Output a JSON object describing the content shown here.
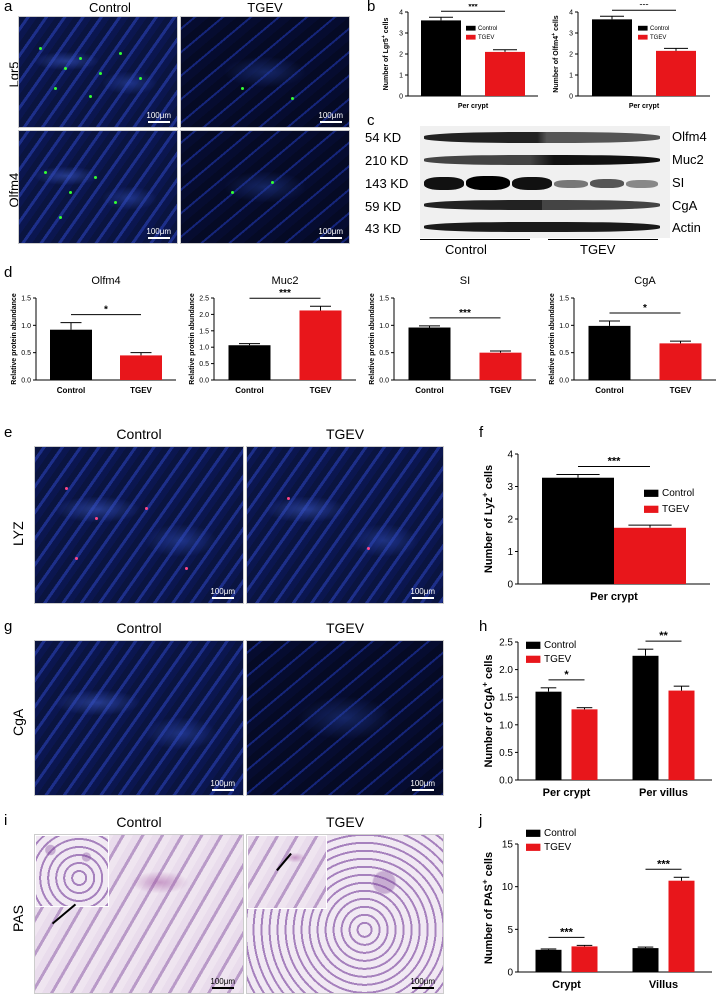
{
  "panels": {
    "a": {
      "label": "a",
      "col_headers": [
        "Control",
        "TGEV"
      ],
      "row_labels": [
        "Lgr5",
        "Olfm4"
      ],
      "scale": "100μm"
    },
    "b": {
      "label": "b"
    },
    "c": {
      "label": "c",
      "markers": [
        "54 KD",
        "210 KD",
        "143 KD",
        "59 KD",
        "43 KD"
      ],
      "proteins": [
        "Olfm4",
        "Muc2",
        "SI",
        "CgA",
        "Actin"
      ],
      "groups": [
        "Control",
        "TGEV"
      ]
    },
    "d": {
      "label": "d"
    },
    "e": {
      "label": "e",
      "col_headers": [
        "Control",
        "TGEV"
      ],
      "row_label": "LYZ",
      "scale": "100μm"
    },
    "f": {
      "label": "f"
    },
    "g": {
      "label": "g",
      "col_headers": [
        "Control",
        "TGEV"
      ],
      "row_label": "CgA",
      "scale": "100μm"
    },
    "h": {
      "label": "h"
    },
    "i": {
      "label": "i",
      "col_headers": [
        "Control",
        "TGEV"
      ],
      "row_label": "PAS",
      "scale": "100μm"
    },
    "j": {
      "label": "j"
    }
  },
  "chart_data": [
    {
      "id": "b1",
      "type": "bar",
      "categories": [
        "Per crypt"
      ],
      "series": [
        {
          "name": "Control",
          "values": [
            3.6
          ]
        },
        {
          "name": "TGEV",
          "values": [
            2.1
          ]
        }
      ],
      "errors": [
        [
          0.15
        ],
        [
          0.1
        ]
      ],
      "ylabel": "Number of Lgr5+ cells",
      "ylim": [
        0,
        4
      ],
      "yticks": [
        "0",
        "1",
        "2",
        "3",
        "4"
      ],
      "sig": [
        "***"
      ],
      "colors": [
        "#000000",
        "#e8161b"
      ],
      "legend": "top-right"
    },
    {
      "id": "b2",
      "type": "bar",
      "categories": [
        "Per crypt"
      ],
      "series": [
        {
          "name": "Control",
          "values": [
            3.65
          ]
        },
        {
          "name": "TGEV",
          "values": [
            2.15
          ]
        }
      ],
      "errors": [
        [
          0.15
        ],
        [
          0.12
        ]
      ],
      "ylabel": "Number of Olfm4+ cells",
      "ylim": [
        0,
        4
      ],
      "yticks": [
        "0",
        "1",
        "2",
        "3",
        "4"
      ],
      "sig": [
        "***"
      ],
      "colors": [
        "#000000",
        "#e8161b"
      ],
      "legend": "top-right"
    },
    {
      "id": "d1",
      "type": "bar",
      "title": "Olfm4",
      "categories": [
        "Control",
        "TGEV"
      ],
      "values": [
        0.92,
        0.45
      ],
      "errors": [
        0.13,
        0.05
      ],
      "ylabel": "Relative protein abundance",
      "ylim": [
        0,
        1.5
      ],
      "yticks": [
        "0.0",
        "0.5",
        "1.0",
        "1.5"
      ],
      "sig": "*",
      "colors": [
        "#000000",
        "#e8161b"
      ]
    },
    {
      "id": "d2",
      "type": "bar",
      "title": "Muc2",
      "categories": [
        "Control",
        "TGEV"
      ],
      "values": [
        1.06,
        2.12
      ],
      "errors": [
        0.05,
        0.13
      ],
      "ylabel": "Relative protein abundance",
      "ylim": [
        0,
        2.5
      ],
      "yticks": [
        "0.0",
        "0.5",
        "1.0",
        "1.5",
        "2.0",
        "2.5"
      ],
      "sig": "***",
      "colors": [
        "#000000",
        "#e8161b"
      ]
    },
    {
      "id": "d3",
      "type": "bar",
      "title": "SI",
      "categories": [
        "Control",
        "TGEV"
      ],
      "values": [
        0.96,
        0.5
      ],
      "errors": [
        0.03,
        0.03
      ],
      "ylabel": "Relative protein abundance",
      "ylim": [
        0,
        1.5
      ],
      "yticks": [
        "0.0",
        "0.5",
        "1.0",
        "1.5"
      ],
      "sig": "***",
      "colors": [
        "#000000",
        "#e8161b"
      ]
    },
    {
      "id": "d4",
      "type": "bar",
      "title": "CgA",
      "categories": [
        "Control",
        "TGEV"
      ],
      "values": [
        0.99,
        0.67
      ],
      "errors": [
        0.09,
        0.04
      ],
      "ylabel": "Relative protein abundance",
      "ylim": [
        0,
        1.5
      ],
      "yticks": [
        "0.0",
        "0.5",
        "1.0",
        "1.5"
      ],
      "sig": "*",
      "colors": [
        "#000000",
        "#e8161b"
      ]
    },
    {
      "id": "f",
      "type": "bar",
      "categories": [
        "Per crypt"
      ],
      "series": [
        {
          "name": "Control",
          "values": [
            3.27
          ]
        },
        {
          "name": "TGEV",
          "values": [
            1.73
          ]
        }
      ],
      "errors": [
        [
          0.1
        ],
        [
          0.08
        ]
      ],
      "ylabel": "Number of Lyz+ cells",
      "ylim": [
        0,
        4
      ],
      "yticks": [
        "0",
        "1",
        "2",
        "3",
        "4"
      ],
      "sig": [
        "***"
      ],
      "colors": [
        "#000000",
        "#e8161b"
      ],
      "legend": "right"
    },
    {
      "id": "h",
      "type": "bar",
      "categories": [
        "Per crypt",
        "Per villus"
      ],
      "series": [
        {
          "name": "Control",
          "values": [
            1.6,
            2.25
          ]
        },
        {
          "name": "TGEV",
          "values": [
            1.28,
            1.62
          ]
        }
      ],
      "errors": [
        [
          0.07,
          0.12
        ],
        [
          0.03,
          0.08
        ]
      ],
      "ylabel": "Number of CgA+ cells",
      "ylim": [
        0,
        2.5
      ],
      "yticks": [
        "0.0",
        "0.5",
        "1.0",
        "1.5",
        "2.0",
        "2.5"
      ],
      "sig": [
        "*",
        "**"
      ],
      "colors": [
        "#000000",
        "#e8161b"
      ],
      "legend": "top-left"
    },
    {
      "id": "j",
      "type": "bar",
      "categories": [
        "Crypt",
        "Villus"
      ],
      "series": [
        {
          "name": "Control",
          "values": [
            2.6,
            2.8
          ]
        },
        {
          "name": "TGEV",
          "values": [
            3.0,
            10.7
          ]
        }
      ],
      "errors": [
        [
          0.1,
          0.12
        ],
        [
          0.12,
          0.4
        ]
      ],
      "ylabel": "Number of PAS+ cells",
      "ylim": [
        0,
        15
      ],
      "yticks": [
        "0",
        "5",
        "10",
        "15"
      ],
      "sig": [
        "***",
        "***"
      ],
      "colors": [
        "#000000",
        "#e8161b"
      ],
      "legend": "top-left"
    }
  ]
}
